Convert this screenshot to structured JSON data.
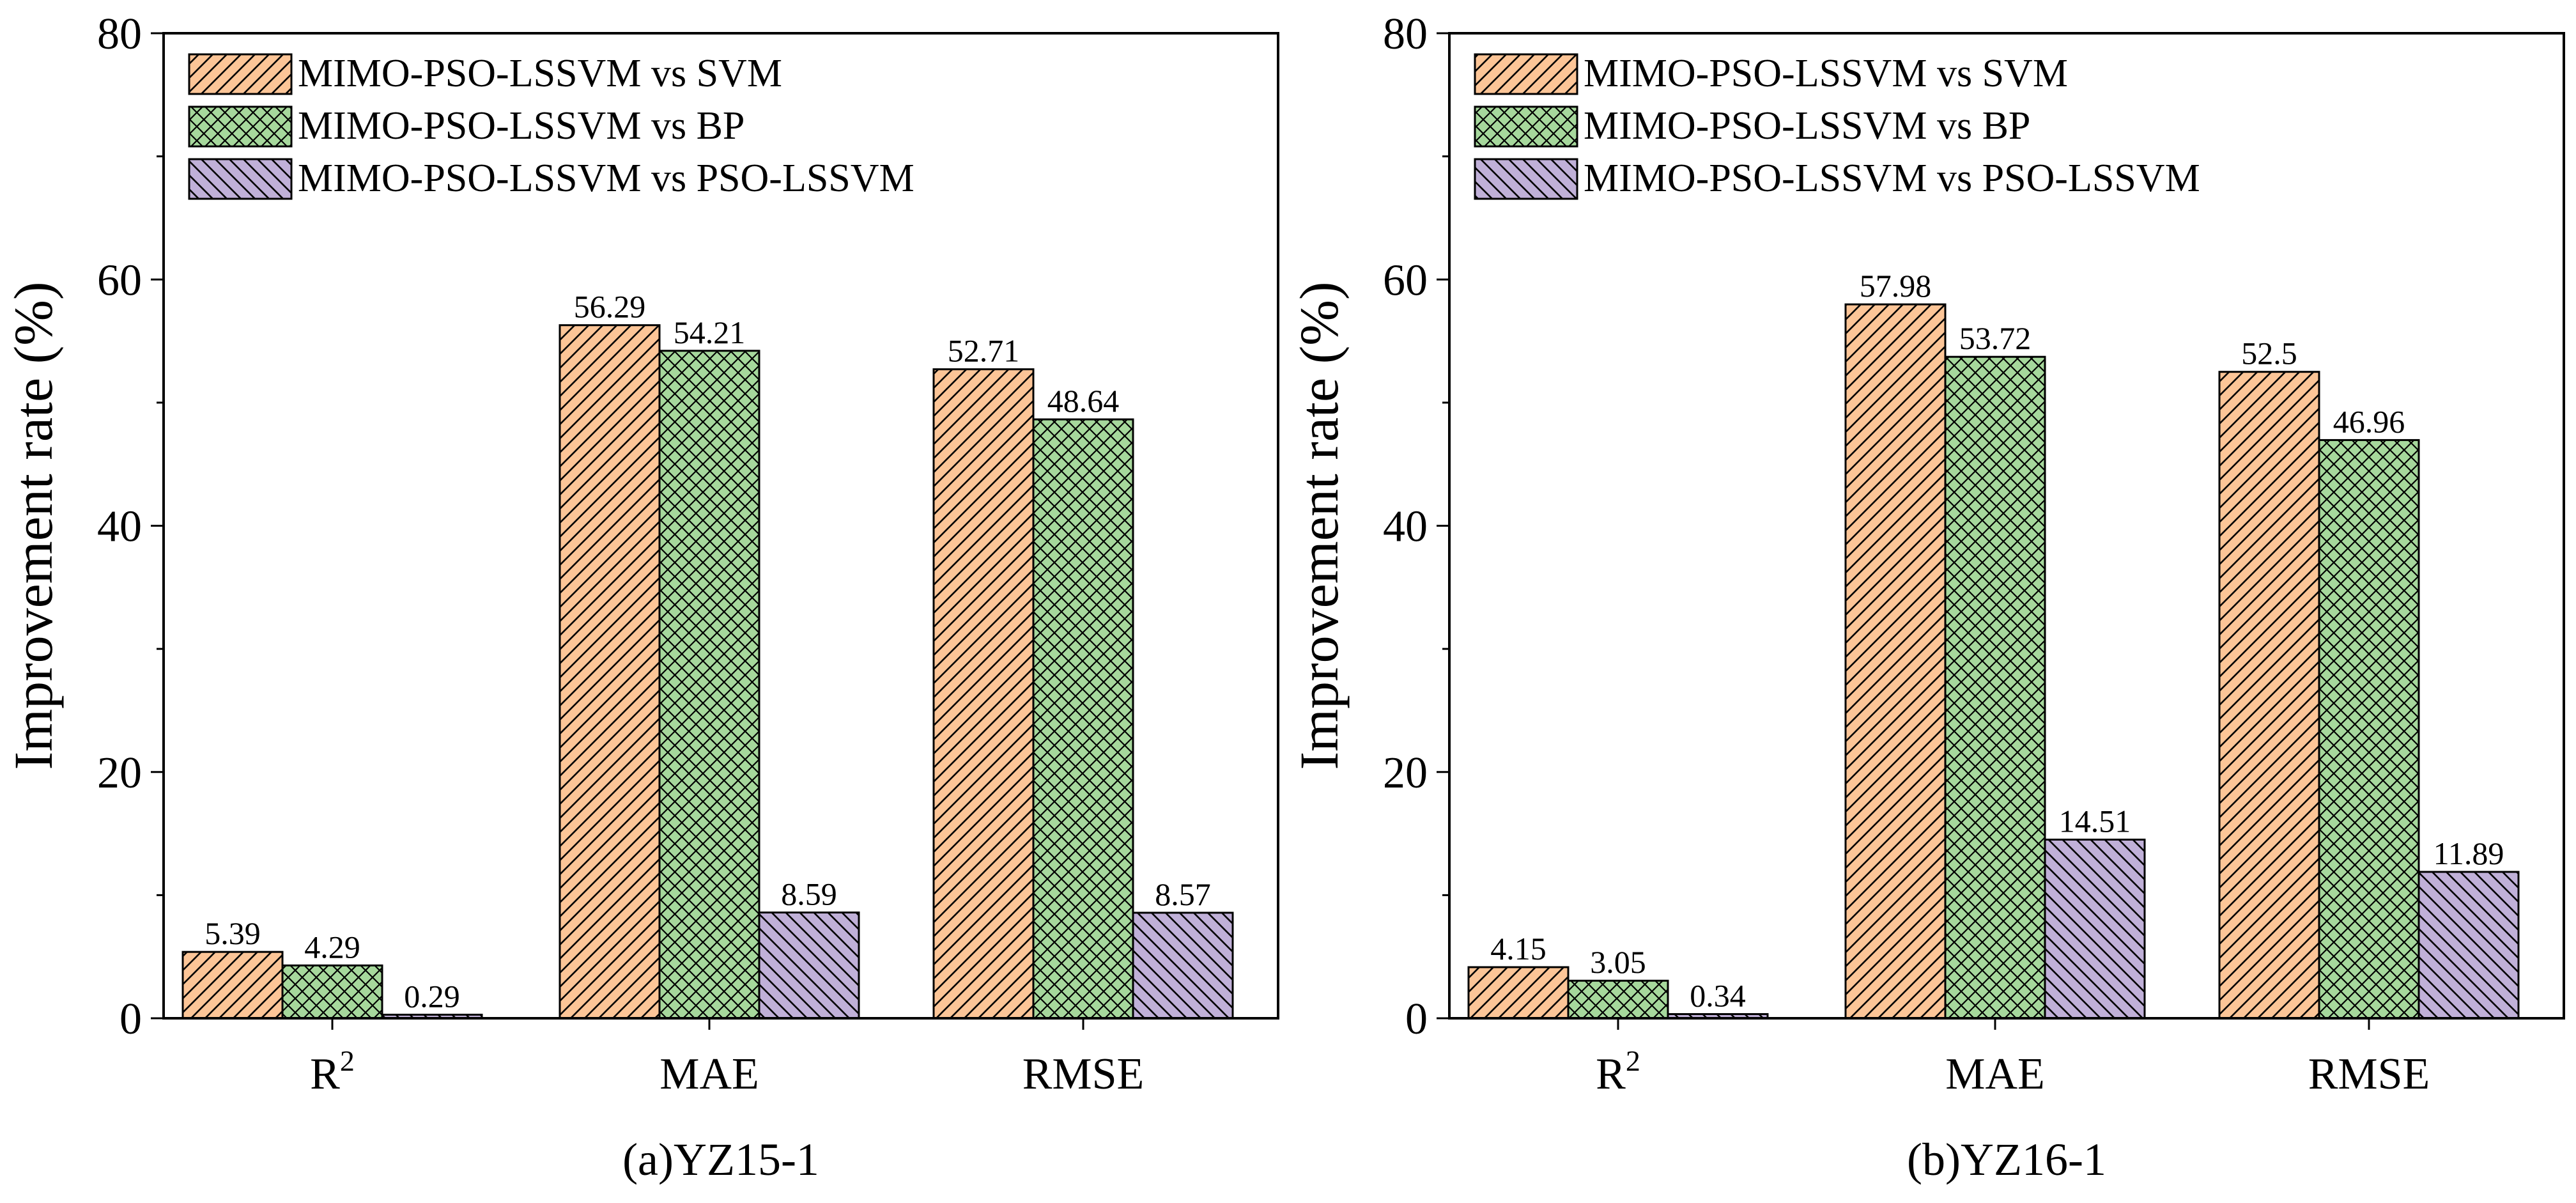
{
  "colors": {
    "svm": "#fcc597",
    "bp": "#a6d89c",
    "pso": "#c0b0d8",
    "stroke": "#000000",
    "background": "#ffffff"
  },
  "chart_data": [
    {
      "type": "bar",
      "caption": "(a)YZ15-1",
      "ylabel": "Improvement rate (%)",
      "xlabel": "",
      "ylim": [
        0,
        80
      ],
      "yticks": [
        "0",
        "20",
        "40",
        "60",
        "80"
      ],
      "categories": [
        "R",
        "MAE",
        "RMSE"
      ],
      "category_superscripts": [
        "2",
        "",
        ""
      ],
      "legend_position": "top-left",
      "series": [
        {
          "name": "MIMO-PSO-LSSVM vs SVM",
          "values": [
            5.39,
            56.29,
            52.71
          ],
          "labels": [
            "5.39",
            "56.29",
            "52.71"
          ]
        },
        {
          "name": "MIMO-PSO-LSSVM vs BP",
          "values": [
            4.29,
            54.21,
            48.64
          ],
          "labels": [
            "4.29",
            "54.21",
            "48.64"
          ]
        },
        {
          "name": "MIMO-PSO-LSSVM vs PSO-LSSVM",
          "values": [
            0.29,
            8.59,
            8.57
          ],
          "labels": [
            "0.29",
            "8.59",
            "8.57"
          ]
        }
      ]
    },
    {
      "type": "bar",
      "caption": "(b)YZ16-1",
      "ylabel": "Improvement rate (%)",
      "xlabel": "",
      "ylim": [
        0,
        80
      ],
      "yticks": [
        "0",
        "20",
        "40",
        "60",
        "80"
      ],
      "categories": [
        "R",
        "MAE",
        "RMSE"
      ],
      "category_superscripts": [
        "2",
        "",
        ""
      ],
      "legend_position": "top-left",
      "series": [
        {
          "name": "MIMO-PSO-LSSVM vs SVM",
          "values": [
            4.15,
            57.98,
            52.5
          ],
          "labels": [
            "4.15",
            "57.98",
            "52.5"
          ]
        },
        {
          "name": "MIMO-PSO-LSSVM vs BP",
          "values": [
            3.05,
            53.72,
            46.96
          ],
          "labels": [
            "3.05",
            "53.72",
            "46.96"
          ]
        },
        {
          "name": "MIMO-PSO-LSSVM vs PSO-LSSVM",
          "values": [
            0.34,
            14.51,
            11.89
          ],
          "labels": [
            "0.34",
            "14.51",
            "11.89"
          ]
        }
      ]
    }
  ]
}
